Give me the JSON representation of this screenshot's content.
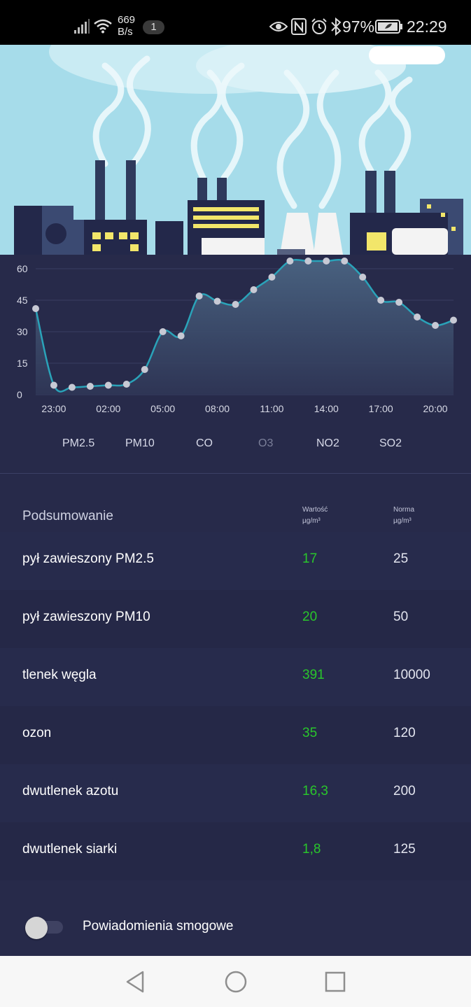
{
  "status_bar": {
    "net_speed_value": "669",
    "net_speed_unit": "B/s",
    "notification_count": "1",
    "battery_percent": "97%",
    "time": "22:29"
  },
  "chart_data": {
    "type": "area",
    "x": [
      "22:00",
      "23:00",
      "00:00",
      "01:00",
      "02:00",
      "03:00",
      "04:00",
      "05:00",
      "06:00",
      "07:00",
      "08:00",
      "09:00",
      "10:00",
      "11:00",
      "12:00",
      "13:00",
      "14:00",
      "15:00",
      "16:00",
      "17:00",
      "18:00",
      "19:00",
      "20:00",
      "21:00"
    ],
    "x_tick_labels": [
      "23:00",
      "02:00",
      "05:00",
      "08:00",
      "11:00",
      "14:00",
      "17:00",
      "20:00"
    ],
    "values": [
      41,
      4.5,
      3.5,
      4,
      4.5,
      5,
      12,
      30,
      28,
      47,
      44.5,
      43,
      50,
      56,
      64,
      64,
      65,
      65,
      56,
      45,
      44,
      37,
      33,
      35.5
    ],
    "y_ticks": [
      0,
      15,
      30,
      45,
      60
    ],
    "ylim": [
      0,
      62
    ],
    "grid": true,
    "colors": {
      "line": "#2aa3b9",
      "point": "#c7c9d4",
      "grid": "#3a3e62",
      "area_top": "#4a6482"
    }
  },
  "pollutant_tabs": [
    {
      "label": "PM2.5",
      "active": false
    },
    {
      "label": "PM10",
      "active": false
    },
    {
      "label": "CO",
      "active": false
    },
    {
      "label": "O3",
      "active": true
    },
    {
      "label": "NO2",
      "active": false
    },
    {
      "label": "SO2",
      "active": false
    }
  ],
  "summary": {
    "title": "Podsumowanie",
    "col_value_label": "Wartość",
    "col_value_unit": "µg/m³",
    "col_norm_label": "Norma",
    "col_norm_unit": "µg/m³",
    "rows": [
      {
        "name": "pył zawieszony PM2.5",
        "value": "17",
        "norm": "25"
      },
      {
        "name": "pył zawieszony PM10",
        "value": "20",
        "norm": "50"
      },
      {
        "name": "tlenek węgla",
        "value": "391",
        "norm": "10000"
      },
      {
        "name": "ozon",
        "value": "35",
        "norm": "120"
      },
      {
        "name": "dwutlenek azotu",
        "value": "16,3",
        "norm": "200"
      },
      {
        "name": "dwutlenek siarki",
        "value": "1,8",
        "norm": "125"
      }
    ],
    "value_color": "#29c62b"
  },
  "smog_notifications": {
    "label": "Powiadomienia smogowe",
    "enabled": false
  },
  "nav_bar": {
    "icons": [
      "back-icon",
      "home-icon",
      "recents-icon"
    ]
  }
}
